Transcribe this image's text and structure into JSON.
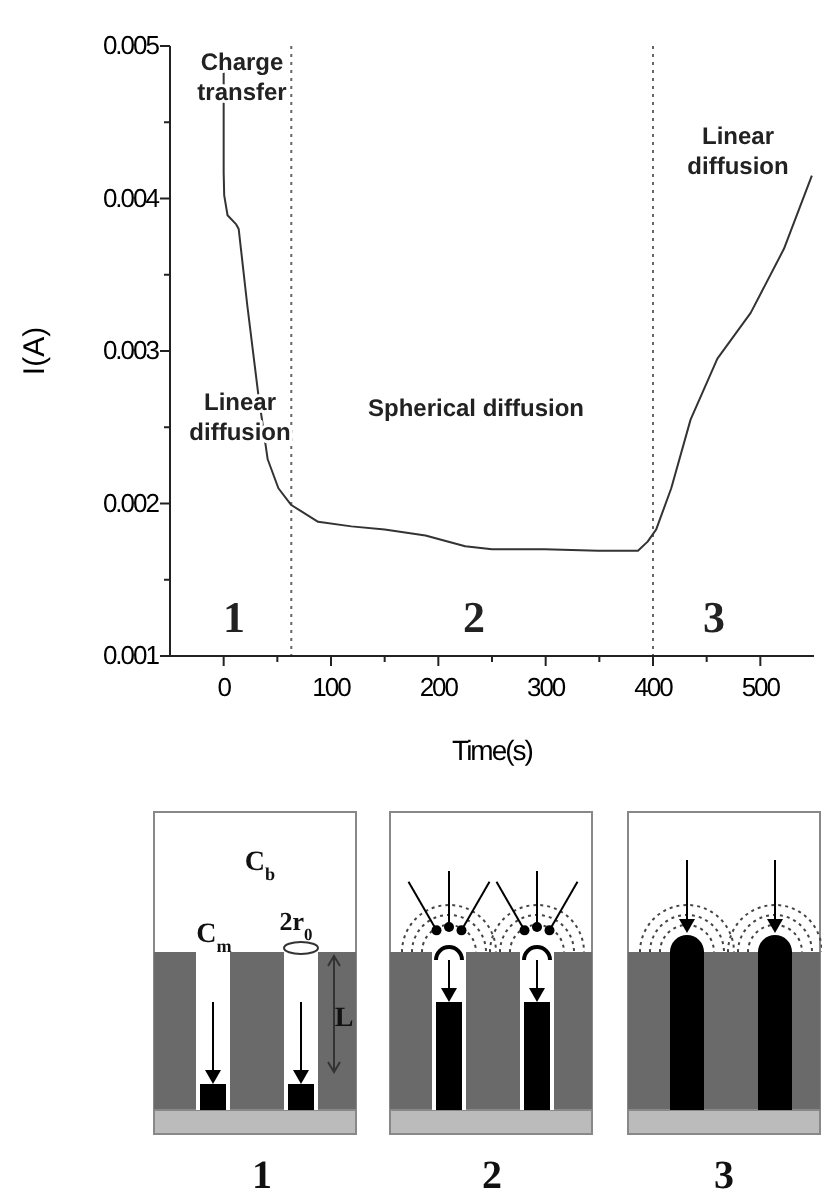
{
  "chart_data": {
    "type": "line",
    "xlabel": "Time(s)",
    "ylabel": "I(A)",
    "xlim": [
      -50,
      550
    ],
    "xticks": [
      0,
      100,
      200,
      300,
      400,
      500
    ],
    "ylim": [
      0.001,
      0.005
    ],
    "yticks": [
      0.001,
      0.002,
      0.003,
      0.004,
      0.005
    ],
    "marker": "none",
    "line_style": "solid",
    "grid": false,
    "series": [
      {
        "color": "#333333",
        "x": [
          0,
          0,
          0.5,
          3.6,
          11.7,
          14,
          22,
          32,
          41,
          51,
          63,
          88,
          119,
          150,
          188,
          225,
          250,
          299,
          349,
          386,
          395,
          403,
          417,
          435,
          460,
          491,
          522,
          548
        ],
        "values": [
          0.00493,
          0.00417,
          0.00402,
          0.00389,
          0.00383,
          0.0038,
          0.0033,
          0.00273,
          0.00229,
          0.0021,
          0.00199,
          0.00188,
          0.00185,
          0.00183,
          0.00179,
          0.00172,
          0.0017,
          0.0017,
          0.00169,
          0.00169,
          0.00175,
          0.00183,
          0.0021,
          0.00255,
          0.00295,
          0.00325,
          0.00367,
          0.00415
        ]
      }
    ],
    "ref_lines": [
      {
        "axis": "x",
        "value": 63,
        "color": "#666666",
        "line_style": "dotted"
      },
      {
        "axis": "x",
        "value": 400,
        "color": "#666666",
        "line_style": "dotted"
      }
    ],
    "annotations": [
      "Charge\ntransfer",
      "Linear\ndiffusion",
      "Spherical diffusion",
      "Linear\ndiffusion",
      "1",
      "2",
      "3",
      "C$_{b}$",
      "C$_{m}$",
      "2r$_{0}$",
      "L",
      "1",
      "2",
      "3"
    ]
  }
}
